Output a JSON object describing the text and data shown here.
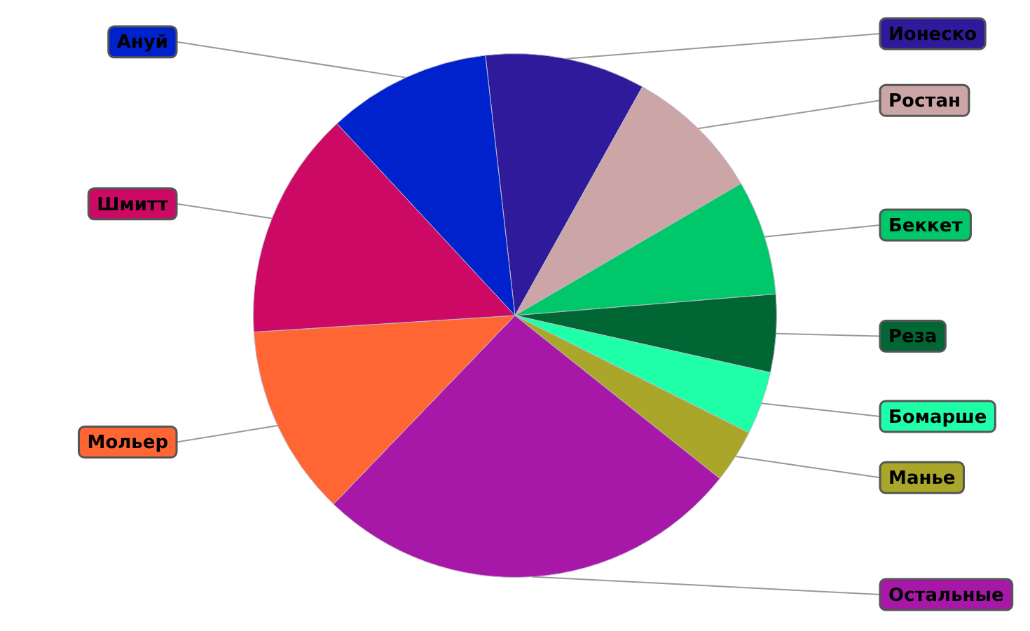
{
  "chart_data": {
    "type": "pie",
    "categories": [
      "Ионеско",
      "Ростан",
      "Беккет",
      "Реза",
      "Бомарше",
      "Манье",
      "Остальные",
      "Мольер",
      "Шмитт",
      "Ануй"
    ],
    "values": [
      9.9,
      8.5,
      7.1,
      4.8,
      3.9,
      3.3,
      26.5,
      11.8,
      14.1,
      10.1
    ],
    "colors": [
      "#2e1a9a",
      "#cca6a6",
      "#00c86a",
      "#006633",
      "#1fffa8",
      "#aaa62a",
      "#a818a8",
      "#ff6633",
      "#cc0a66",
      "#0022cc"
    ],
    "legend": false
  }
}
